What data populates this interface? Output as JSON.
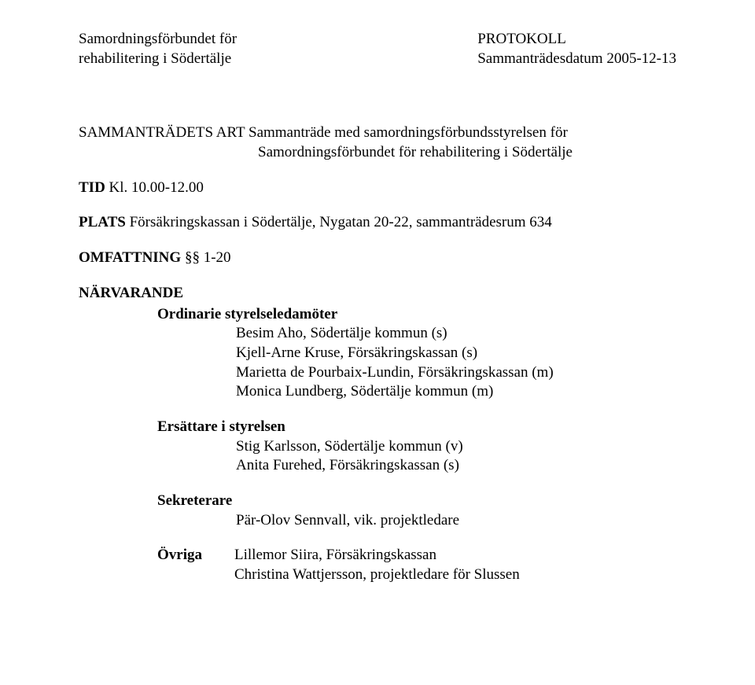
{
  "header": {
    "left_line1": "Samordningsförbundet för",
    "left_line2": "rehabilitering i Södertälje",
    "right_line1": "PROTOKOLL",
    "right_line2": "Sammanträdesdatum 2005-12-13"
  },
  "art": {
    "label": "SAMMANTRÄDETS ART",
    "line1": "Sammanträde med samordningsförbundsstyrelsen för",
    "line2": "Samordningsförbundet för rehabilitering i Södertälje"
  },
  "tid": {
    "label": "TID",
    "value": "Kl. 10.00-12.00"
  },
  "plats": {
    "label": "PLATS",
    "value": "Försäkringskassan i Södertälje, Nygatan 20-22, sammanträdesrum 634"
  },
  "omfattning": {
    "label": "OMFATTNING",
    "value": "§§ 1-20"
  },
  "narvarande": {
    "label": "NÄRVARANDE",
    "ordinarie": {
      "title": "Ordinarie styrelseledamöter",
      "members": [
        "Besim Aho, Södertälje kommun (s)",
        "Kjell-Arne Kruse, Försäkringskassan (s)",
        "Marietta de Pourbaix-Lundin, Försäkringskassan (m)",
        "Monica Lundberg, Södertälje kommun (m)"
      ]
    },
    "ersattare": {
      "title": "Ersättare i styrelsen",
      "members": [
        "Stig Karlsson, Södertälje kommun (v)",
        "Anita Furehed, Försäkringskassan (s)"
      ]
    },
    "sekreterare": {
      "title": "Sekreterare",
      "members": [
        "Pär-Olov Sennvall, vik. projektledare"
      ]
    },
    "ovriga": {
      "title": "Övriga",
      "members": [
        "Lillemor Siira, Försäkringskassan",
        "Christina Wattjersson, projektledare för Slussen"
      ]
    }
  }
}
